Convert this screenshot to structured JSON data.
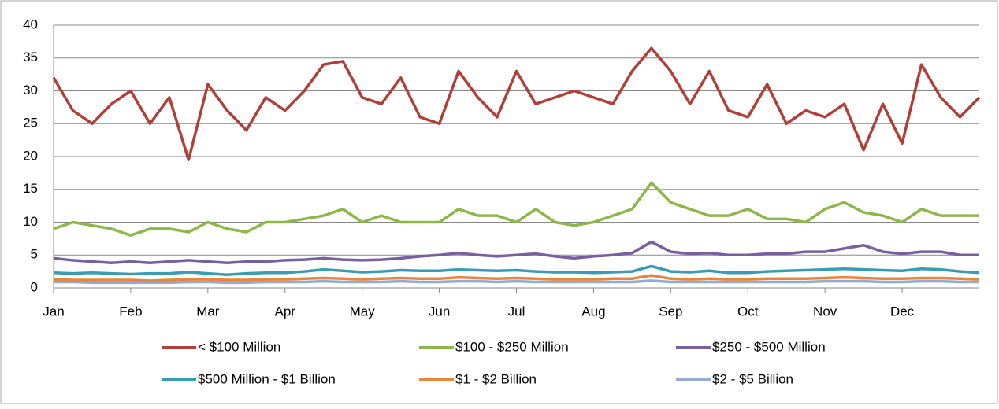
{
  "chart_data": {
    "type": "line",
    "categories": [
      "Jan",
      null,
      null,
      null,
      "Feb",
      null,
      null,
      null,
      "Mar",
      null,
      null,
      null,
      "Apr",
      null,
      null,
      null,
      "May",
      null,
      null,
      null,
      "Jun",
      null,
      null,
      null,
      "Jul",
      null,
      null,
      null,
      "Aug",
      null,
      null,
      null,
      "Sep",
      null,
      null,
      null,
      "Oct",
      null,
      null,
      null,
      "Nov",
      null,
      null,
      null,
      "Dec",
      null,
      null,
      null,
      null
    ],
    "series": [
      {
        "name": "< $100 Million",
        "color": "#b03f3a",
        "values": [
          32,
          27,
          25,
          28,
          30,
          25,
          29,
          19.5,
          31,
          27,
          24,
          29,
          27,
          30,
          34,
          34.5,
          29,
          28,
          32,
          26,
          25,
          33,
          29,
          26,
          33,
          28,
          29,
          30,
          29,
          28,
          33,
          36.5,
          33,
          28,
          33,
          27,
          26,
          31,
          25,
          27,
          26,
          28,
          21,
          28,
          22,
          34,
          29,
          26,
          29
        ]
      },
      {
        "name": "$100 - $250 Million",
        "color": "#8db849",
        "values": [
          9,
          10,
          9.5,
          9,
          8,
          9,
          9,
          8.5,
          10,
          9,
          8.5,
          10,
          10,
          10.5,
          11,
          12,
          10,
          11,
          10,
          10,
          10,
          12,
          11,
          11,
          10,
          12,
          10,
          9.5,
          10,
          11,
          12,
          16,
          13,
          12,
          11,
          11,
          12,
          10.5,
          10.5,
          10,
          12,
          13,
          11.5,
          11,
          10,
          12,
          11,
          11,
          11
        ]
      },
      {
        "name": "$250 - $500 Million",
        "color": "#7a5fa0",
        "values": [
          4.5,
          4.2,
          4,
          3.8,
          4,
          3.8,
          4,
          4.2,
          4,
          3.8,
          4,
          4,
          4.2,
          4.3,
          4.5,
          4.3,
          4.2,
          4.3,
          4.5,
          4.8,
          5,
          5.3,
          5,
          4.8,
          5,
          5.2,
          4.8,
          4.5,
          4.8,
          5,
          5.3,
          7,
          5.5,
          5.2,
          5.3,
          5,
          5,
          5.2,
          5.2,
          5.5,
          5.5,
          6,
          6.5,
          5.5,
          5.2,
          5.5,
          5.5,
          5,
          5
        ]
      },
      {
        "name": "$500 Million - $1 Billion",
        "color": "#3a9bb5",
        "values": [
          2.3,
          2.2,
          2.3,
          2.2,
          2.1,
          2.2,
          2.2,
          2.4,
          2.2,
          2,
          2.2,
          2.3,
          2.3,
          2.5,
          2.8,
          2.6,
          2.4,
          2.5,
          2.7,
          2.6,
          2.6,
          2.8,
          2.7,
          2.6,
          2.7,
          2.5,
          2.4,
          2.4,
          2.3,
          2.4,
          2.5,
          3.3,
          2.5,
          2.4,
          2.6,
          2.3,
          2.3,
          2.5,
          2.6,
          2.7,
          2.8,
          2.9,
          2.8,
          2.7,
          2.6,
          2.9,
          2.8,
          2.5,
          2.3
        ]
      },
      {
        "name": "$1 - $2 Billion",
        "color": "#e8873b",
        "values": [
          1.3,
          1.2,
          1.2,
          1.2,
          1.2,
          1.1,
          1.2,
          1.3,
          1.3,
          1.2,
          1.2,
          1.3,
          1.3,
          1.4,
          1.5,
          1.4,
          1.3,
          1.4,
          1.5,
          1.4,
          1.4,
          1.6,
          1.5,
          1.4,
          1.5,
          1.4,
          1.3,
          1.3,
          1.3,
          1.4,
          1.4,
          1.9,
          1.4,
          1.3,
          1.4,
          1.3,
          1.3,
          1.4,
          1.4,
          1.4,
          1.5,
          1.6,
          1.5,
          1.4,
          1.4,
          1.5,
          1.5,
          1.4,
          1.3
        ]
      },
      {
        "name": "$2 - $5 Billion",
        "color": "#94abd6",
        "values": [
          0.9,
          0.9,
          0.8,
          0.8,
          0.8,
          0.8,
          0.8,
          0.9,
          0.9,
          0.8,
          0.8,
          0.9,
          0.9,
          0.9,
          1,
          0.9,
          0.9,
          0.9,
          1,
          0.9,
          0.9,
          1,
          1,
          0.9,
          1,
          0.9,
          0.9,
          0.9,
          0.9,
          0.9,
          0.9,
          1.1,
          0.9,
          0.9,
          0.9,
          0.9,
          0.9,
          0.9,
          0.9,
          0.9,
          1,
          1,
          1,
          0.9,
          0.9,
          1,
          1,
          0.9,
          0.9
        ]
      }
    ],
    "ylim": [
      0,
      40
    ],
    "yticks": [
      0,
      5,
      10,
      15,
      20,
      25,
      30,
      35,
      40
    ],
    "grid": true,
    "legend": "bottom"
  }
}
